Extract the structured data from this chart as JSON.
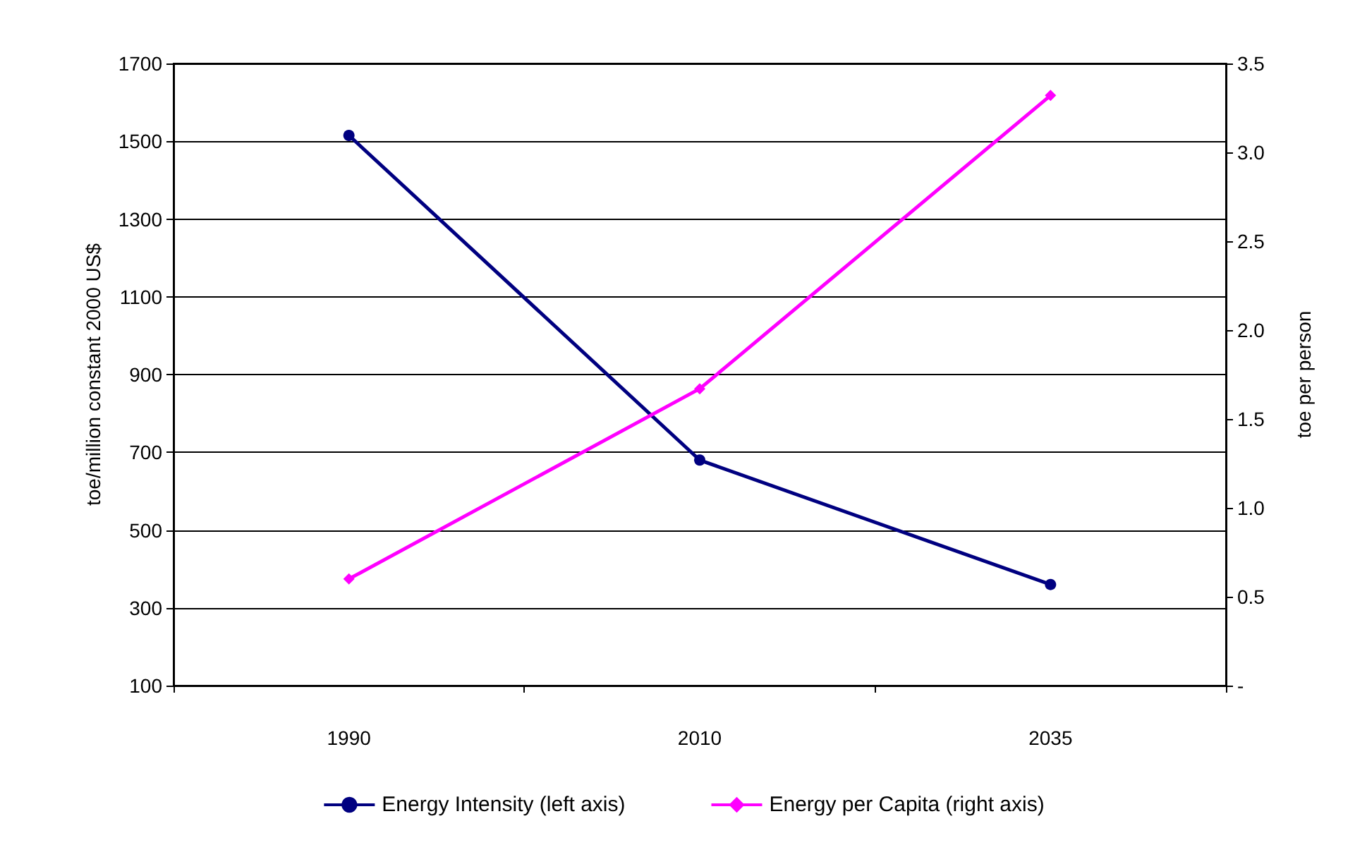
{
  "chart_data": {
    "type": "line",
    "ylabel": "toe/million constant 2000 US$",
    "y2label": "toe per person",
    "categories": [
      "1990",
      "2010",
      "2035"
    ],
    "series": [
      {
        "name": "Energy Intensity (left axis)",
        "color": "#000080",
        "values": [
          1515,
          680,
          360
        ],
        "marker": "circle"
      },
      {
        "name": "Energy per Capita (right axis)",
        "color": "#ff00ff",
        "values": [
          0.6,
          1.67,
          3.32
        ],
        "marker": "diamond",
        "axis": "y2"
      }
    ],
    "ylim": [
      100,
      1700
    ],
    "yticks": [
      100,
      300,
      500,
      700,
      900,
      1100,
      1300,
      1500,
      1700
    ],
    "y2lim": [
      0,
      3.5
    ],
    "y2ticks": [
      {
        "value": 0,
        "label": "-"
      },
      {
        "value": 0.5,
        "label": "0.5"
      },
      {
        "value": 1,
        "label": "1.0"
      },
      {
        "value": 1.5,
        "label": "1.5"
      },
      {
        "value": 2,
        "label": "2.0"
      },
      {
        "value": 2.5,
        "label": "2.5"
      },
      {
        "value": 3,
        "label": "3.0"
      },
      {
        "value": 3.5,
        "label": "3.5"
      }
    ],
    "grid": "y",
    "legend": "bottom",
    "line_style": "solid"
  }
}
